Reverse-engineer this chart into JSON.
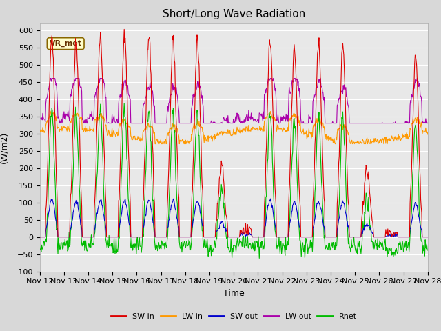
{
  "title": "Short/Long Wave Radiation",
  "ylabel": "(W/m2)",
  "xlabel": "Time",
  "ylim": [
    -100,
    620
  ],
  "yticks": [
    -100,
    -50,
    0,
    50,
    100,
    150,
    200,
    250,
    300,
    350,
    400,
    450,
    500,
    550,
    600
  ],
  "colors": {
    "SW_in": "#dd0000",
    "LW_in": "#ff9900",
    "SW_out": "#0000cc",
    "LW_out": "#aa00aa",
    "Rnet": "#00bb00"
  },
  "legend_labels": [
    "SW in",
    "LW in",
    "SW out",
    "LW out",
    "Rnet"
  ],
  "annotation": "VR_met",
  "bg_color": "#e8e8e8",
  "grid_color": "#ffffff",
  "title_fontsize": 11,
  "label_fontsize": 9,
  "tick_fontsize": 8
}
